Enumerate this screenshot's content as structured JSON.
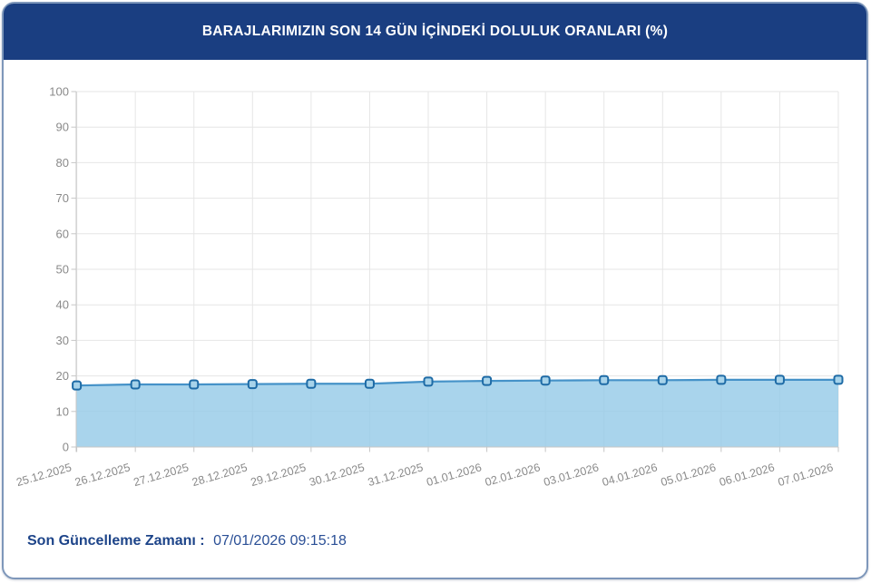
{
  "header": {
    "title": "BARAJLARIMIZIN SON 14 GÜN İÇİNDEKİ DOLULUK ORANLARI (%)"
  },
  "footer": {
    "label": "Son Güncelleme Zamanı :",
    "value": "07/01/2026 09:15:18"
  },
  "chart_data": {
    "type": "area",
    "title": "BARAJLARIMIZIN SON 14 GÜN İÇİNDEKİ DOLULUK ORANLARI (%)",
    "categories": [
      "25.12.2025",
      "26.12.2025",
      "27.12.2025",
      "28.12.2025",
      "29.12.2025",
      "30.12.2025",
      "31.12.2025",
      "01.01.2026",
      "02.01.2026",
      "03.01.2026",
      "04.01.2026",
      "05.01.2026",
      "06.01.2026",
      "07.01.2026"
    ],
    "values": [
      17.3,
      17.6,
      17.6,
      17.7,
      17.8,
      17.8,
      18.4,
      18.6,
      18.7,
      18.8,
      18.8,
      18.9,
      18.9,
      18.9
    ],
    "xlabel": "",
    "ylabel": "",
    "ylim": [
      0,
      100
    ],
    "ytick_step": 10,
    "grid": true,
    "legend": "none",
    "colors": {
      "header_bg": "#1a3e81",
      "footer_text": "#1d4489",
      "line": "#4592c8",
      "area_fill": "#93c9e7",
      "marker_fill": "#a7d3ea",
      "marker_border": "#1e6ba6",
      "gridline": "#e6e6e6",
      "axis": "#c6c6c6",
      "tick_text": "#8a8a8a"
    }
  }
}
